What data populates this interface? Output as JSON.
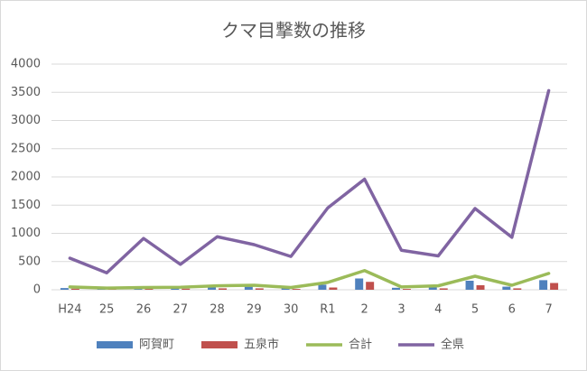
{
  "chart_data": {
    "type": "combo",
    "title": "クマ目撃数の推移",
    "categories": [
      "H24",
      "25",
      "26",
      "27",
      "28",
      "29",
      "30",
      "R1",
      "2",
      "3",
      "4",
      "5",
      "6",
      "7"
    ],
    "series": [
      {
        "name": "阿賀町",
        "type": "bar",
        "color": "#4f81bd",
        "values": [
          30,
          15,
          20,
          25,
          45,
          55,
          25,
          90,
          200,
          35,
          45,
          160,
          55,
          170
        ]
      },
      {
        "name": "五泉市",
        "type": "bar",
        "color": "#c0504d",
        "values": [
          20,
          15,
          20,
          20,
          25,
          25,
          15,
          40,
          140,
          15,
          25,
          80,
          25,
          120
        ]
      },
      {
        "name": "合計",
        "type": "line",
        "color": "#9bbb59",
        "values": [
          50,
          30,
          40,
          45,
          70,
          80,
          40,
          130,
          340,
          50,
          70,
          240,
          80,
          290
        ]
      },
      {
        "name": "全県",
        "type": "line",
        "color": "#8064a2",
        "values": [
          560,
          300,
          910,
          450,
          940,
          800,
          590,
          1450,
          1960,
          700,
          600,
          1440,
          930,
          3530
        ]
      }
    ],
    "ylim": [
      0,
      4000
    ],
    "yticks": [
      0,
      500,
      1000,
      1500,
      2000,
      2500,
      3000,
      3500,
      4000
    ],
    "grid": true,
    "legend": "bottom"
  }
}
